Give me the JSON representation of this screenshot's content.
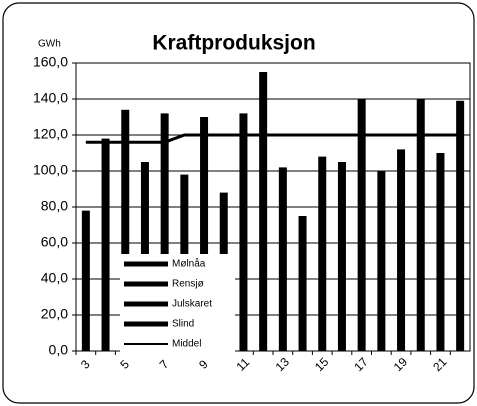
{
  "chart_data": {
    "type": "bar",
    "title": "Kraftproduksjon",
    "y_label": "GWh",
    "categories": [
      3,
      null,
      5,
      null,
      7,
      null,
      9,
      null,
      11,
      null,
      13,
      null,
      15,
      null,
      17,
      null,
      19,
      null,
      21,
      null
    ],
    "series": [
      {
        "name": "Mølnåa",
        "color": "#000000",
        "values": [
          78,
          118,
          134,
          105,
          132,
          98,
          130,
          88,
          132,
          155,
          102,
          75,
          108,
          105,
          140,
          100,
          112,
          140,
          110,
          139
        ]
      },
      {
        "name": "Rensjø",
        "color": "#000000",
        "values": [
          null,
          null,
          null,
          null,
          null,
          null,
          null,
          null,
          null,
          null,
          null,
          null,
          null,
          null,
          null,
          null,
          null,
          null,
          null,
          null
        ]
      },
      {
        "name": "Julskaret",
        "color": "#000000",
        "values": [
          null,
          null,
          null,
          null,
          null,
          null,
          null,
          null,
          null,
          null,
          null,
          null,
          null,
          null,
          null,
          null,
          null,
          null,
          null,
          null
        ]
      },
      {
        "name": "Slind",
        "color": "#000000",
        "values": [
          null,
          null,
          null,
          null,
          null,
          null,
          null,
          null,
          null,
          null,
          null,
          null,
          null,
          null,
          null,
          null,
          null,
          null,
          null,
          null
        ]
      },
      {
        "name": "Middel",
        "color": "#000000",
        "kind": "line",
        "values": [
          116,
          116,
          116,
          116,
          116,
          120,
          120,
          120,
          120,
          120,
          120,
          120,
          120,
          120,
          120,
          120,
          120,
          120,
          120,
          120
        ]
      }
    ],
    "ylim": [
      0,
      160
    ],
    "yticks": [
      {
        "value": 0,
        "label": "0,0"
      },
      {
        "value": 20,
        "label": "20,0"
      },
      {
        "value": 40,
        "label": "40,0"
      },
      {
        "value": 60,
        "label": "60,0"
      },
      {
        "value": 80,
        "label": "80,0"
      },
      {
        "value": 100,
        "label": "100,0"
      },
      {
        "value": 120,
        "label": "120,0"
      },
      {
        "value": 140,
        "label": "140,0"
      },
      {
        "value": 160,
        "label": "160,0"
      }
    ],
    "grid": true
  }
}
